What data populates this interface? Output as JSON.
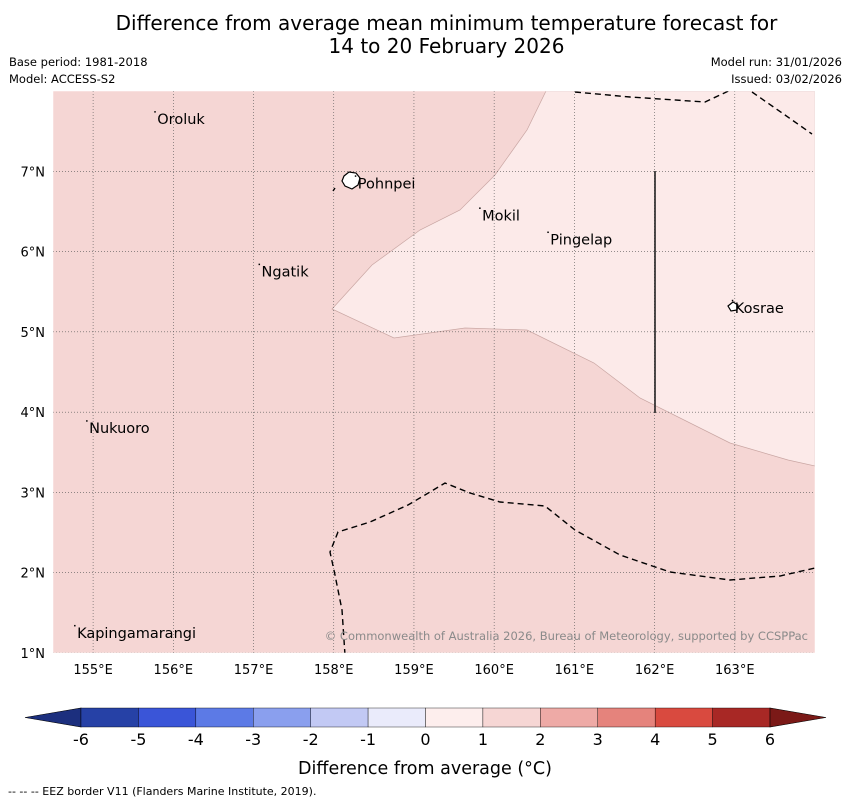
{
  "title": {
    "line1": "Difference from average mean minimum temperature forecast for",
    "line2": "14 to 20 February 2026"
  },
  "meta": {
    "base_period": "Base period: 1981-2018",
    "model": "Model: ACCESS-S2",
    "model_run": "Model run: 31/01/2026",
    "issued": "Issued: 03/02/2026"
  },
  "map": {
    "lon_range": [
      154.5,
      164.0
    ],
    "lat_range": [
      1.0,
      8.0
    ],
    "lon_ticks": [
      "155°E",
      "156°E",
      "157°E",
      "158°E",
      "159°E",
      "160°E",
      "161°E",
      "162°E",
      "163°E"
    ],
    "lat_ticks": [
      "1°N",
      "2°N",
      "3°N",
      "4°N",
      "5°N",
      "6°N",
      "7°N"
    ],
    "regions": [
      {
        "name": "1 to 2 above average",
        "color": "#f5d6d4"
      },
      {
        "name": "0 to 1 above average",
        "color": "#fceae9"
      }
    ],
    "places": [
      {
        "name": "Oroluk",
        "lon": 155.8,
        "lat": 7.65
      },
      {
        "name": "Pohnpei",
        "lon": 158.3,
        "lat": 6.85
      },
      {
        "name": "Mokil",
        "lon": 159.85,
        "lat": 6.45
      },
      {
        "name": "Pingelap",
        "lon": 160.7,
        "lat": 6.15
      },
      {
        "name": "Ngatik",
        "lon": 157.1,
        "lat": 5.75
      },
      {
        "name": "Kosrae",
        "lon": 163.0,
        "lat": 5.3
      },
      {
        "name": "Nukuoro",
        "lon": 154.95,
        "lat": 3.8
      },
      {
        "name": "Kapingamarangi",
        "lon": 154.8,
        "lat": 1.25
      }
    ],
    "copyright": "© Commonwealth of Australia 2026, Bureau of Meteorology, supported by CCSPPac"
  },
  "colorbar": {
    "ticks": [
      "-6",
      "-5",
      "-4",
      "-3",
      "-2",
      "-1",
      "0",
      "1",
      "2",
      "3",
      "4",
      "5",
      "6"
    ],
    "colors": [
      "#2641a6",
      "#3a55d8",
      "#5c7ae6",
      "#8a9fee",
      "#c2c9f4",
      "#eaebfb",
      "#fdeeed",
      "#f6d6d4",
      "#eeaaa6",
      "#e5837c",
      "#d94a3f",
      "#a82825"
    ],
    "under_color": "#1c2f7e",
    "over_color": "#7b1917",
    "label": "Difference from average (°C)"
  },
  "footer": "--  --  -- EEZ border V11 (Flanders Marine Institute, 2019)."
}
